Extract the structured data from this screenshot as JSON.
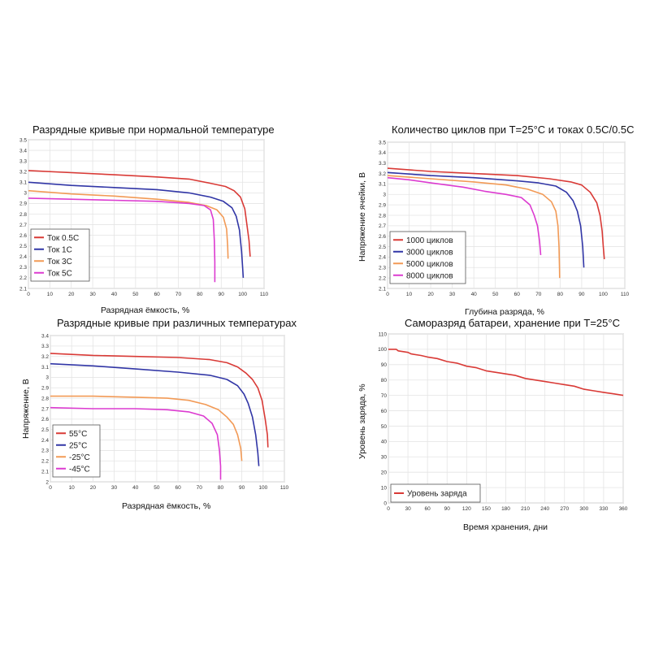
{
  "chart_data": [
    {
      "type": "line",
      "title": "Разрядные кривые при нормальной температуре",
      "xlabel": "Разрядная ёмкость, %",
      "ylabel": "",
      "xlim": [
        0,
        110
      ],
      "ylim": [
        2.1,
        3.5
      ],
      "xticks": [
        0,
        10,
        20,
        30,
        40,
        50,
        60,
        70,
        80,
        90,
        100,
        110
      ],
      "yticks": [
        2.1,
        2.2,
        2.3,
        2.4,
        2.5,
        2.6,
        2.7,
        2.8,
        2.9,
        3.0,
        3.1,
        3.2,
        3.3,
        3.4,
        3.5
      ],
      "grid": true,
      "legend": "bottom-left",
      "series": [
        {
          "name": "Ток 0.5С",
          "color": "#d93a36",
          "points": [
            [
              0,
              3.21
            ],
            [
              20,
              3.19
            ],
            [
              40,
              3.17
            ],
            [
              60,
              3.15
            ],
            [
              75,
              3.13
            ],
            [
              85,
              3.09
            ],
            [
              92,
              3.06
            ],
            [
              96,
              3.02
            ],
            [
              99,
              2.96
            ],
            [
              101,
              2.85
            ],
            [
              102,
              2.7
            ],
            [
              103,
              2.55
            ],
            [
              103.5,
              2.4
            ]
          ]
        },
        {
          "name": "Ток 1С",
          "color": "#3136a6",
          "points": [
            [
              0,
              3.1
            ],
            [
              20,
              3.07
            ],
            [
              40,
              3.05
            ],
            [
              60,
              3.03
            ],
            [
              75,
              3.0
            ],
            [
              85,
              2.96
            ],
            [
              91,
              2.92
            ],
            [
              95,
              2.86
            ],
            [
              97,
              2.78
            ],
            [
              98.5,
              2.65
            ],
            [
              99.5,
              2.45
            ],
            [
              100,
              2.3
            ],
            [
              100.3,
              2.2
            ]
          ]
        },
        {
          "name": "Ток 3С",
          "color": "#f29a56",
          "points": [
            [
              0,
              3.02
            ],
            [
              20,
              2.99
            ],
            [
              40,
              2.97
            ],
            [
              60,
              2.94
            ],
            [
              75,
              2.91
            ],
            [
              83,
              2.88
            ],
            [
              88,
              2.84
            ],
            [
              91,
              2.77
            ],
            [
              92.5,
              2.66
            ],
            [
              93,
              2.5
            ],
            [
              93.2,
              2.38
            ]
          ]
        },
        {
          "name": "Ток 5С",
          "color": "#dc3bd0",
          "points": [
            [
              0,
              2.95
            ],
            [
              20,
              2.94
            ],
            [
              40,
              2.93
            ],
            [
              60,
              2.92
            ],
            [
              75,
              2.9
            ],
            [
              82,
              2.88
            ],
            [
              85,
              2.84
            ],
            [
              86.3,
              2.75
            ],
            [
              86.8,
              2.55
            ],
            [
              87,
              2.35
            ],
            [
              87,
              2.16
            ]
          ]
        }
      ]
    },
    {
      "type": "line",
      "title": "Количество циклов при T=25°C и токах 0.5C/0.5C",
      "xlabel": "Глубина разряда, %",
      "ylabel": "Напряжение ячейки, В",
      "xlim": [
        0,
        110
      ],
      "ylim": [
        2.1,
        3.5
      ],
      "xticks": [
        0,
        10,
        20,
        30,
        40,
        50,
        60,
        70,
        80,
        90,
        100,
        110
      ],
      "yticks": [
        2.1,
        2.2,
        2.3,
        2.4,
        2.5,
        2.6,
        2.7,
        2.8,
        2.9,
        3.0,
        3.1,
        3.2,
        3.3,
        3.4,
        3.5
      ],
      "grid": true,
      "legend": "bottom-left",
      "series": [
        {
          "name": "1000 циклов",
          "color": "#d93a36",
          "points": [
            [
              0,
              3.25
            ],
            [
              20,
              3.22
            ],
            [
              40,
              3.2
            ],
            [
              60,
              3.18
            ],
            [
              75,
              3.15
            ],
            [
              85,
              3.12
            ],
            [
              90,
              3.09
            ],
            [
              94,
              3.02
            ],
            [
              97,
              2.92
            ],
            [
              98.5,
              2.8
            ],
            [
              99.5,
              2.65
            ],
            [
              100,
              2.5
            ],
            [
              100.5,
              2.38
            ]
          ]
        },
        {
          "name": "3000 циклов",
          "color": "#3136a6",
          "points": [
            [
              0,
              3.21
            ],
            [
              20,
              3.18
            ],
            [
              40,
              3.16
            ],
            [
              60,
              3.13
            ],
            [
              70,
              3.11
            ],
            [
              78,
              3.08
            ],
            [
              83,
              3.02
            ],
            [
              86,
              2.94
            ],
            [
              88,
              2.84
            ],
            [
              89.5,
              2.7
            ],
            [
              90.5,
              2.5
            ],
            [
              91,
              2.3
            ]
          ]
        },
        {
          "name": "5000 циклов",
          "color": "#f29a56",
          "points": [
            [
              0,
              3.18
            ],
            [
              20,
              3.15
            ],
            [
              40,
              3.12
            ],
            [
              55,
              3.09
            ],
            [
              65,
              3.05
            ],
            [
              72,
              3.0
            ],
            [
              76,
              2.93
            ],
            [
              78,
              2.84
            ],
            [
              79,
              2.7
            ],
            [
              79.5,
              2.5
            ],
            [
              79.7,
              2.3
            ],
            [
              79.8,
              2.2
            ]
          ]
        },
        {
          "name": "8000 циклов",
          "color": "#dc3bd0",
          "points": [
            [
              0,
              3.16
            ],
            [
              10,
              3.14
            ],
            [
              20,
              3.11
            ],
            [
              35,
              3.07
            ],
            [
              45,
              3.03
            ],
            [
              55,
              3.0
            ],
            [
              62,
              2.97
            ],
            [
              66,
              2.9
            ],
            [
              68,
              2.8
            ],
            [
              69.5,
              2.7
            ],
            [
              70.5,
              2.55
            ],
            [
              71,
              2.42
            ]
          ]
        }
      ]
    },
    {
      "type": "line",
      "title": "Разрядные кривые при различных температурах",
      "xlabel": "Разрядная ёмкость, %",
      "ylabel": "Напряжение, В",
      "xlim": [
        0,
        110
      ],
      "ylim": [
        2.0,
        3.4
      ],
      "xticks": [
        0,
        10,
        20,
        30,
        40,
        50,
        60,
        70,
        80,
        90,
        100,
        110
      ],
      "yticks": [
        2.0,
        2.1,
        2.2,
        2.3,
        2.4,
        2.5,
        2.6,
        2.7,
        2.8,
        2.9,
        3.0,
        3.1,
        3.2,
        3.3,
        3.4
      ],
      "grid": true,
      "legend": "bottom-left",
      "series": [
        {
          "name": "55°C",
          "color": "#d93a36",
          "points": [
            [
              0,
              3.23
            ],
            [
              20,
              3.21
            ],
            [
              40,
              3.2
            ],
            [
              60,
              3.19
            ],
            [
              75,
              3.17
            ],
            [
              83,
              3.14
            ],
            [
              88,
              3.1
            ],
            [
              92,
              3.04
            ],
            [
              95,
              2.98
            ],
            [
              97.5,
              2.9
            ],
            [
              99.5,
              2.78
            ],
            [
              101,
              2.6
            ],
            [
              102,
              2.45
            ],
            [
              102.3,
              2.33
            ]
          ]
        },
        {
          "name": "25°C",
          "color": "#3136a6",
          "points": [
            [
              0,
              3.13
            ],
            [
              20,
              3.11
            ],
            [
              40,
              3.08
            ],
            [
              60,
              3.05
            ],
            [
              75,
              3.02
            ],
            [
              83,
              2.98
            ],
            [
              88,
              2.92
            ],
            [
              91,
              2.84
            ],
            [
              93,
              2.75
            ],
            [
              95,
              2.62
            ],
            [
              96.5,
              2.45
            ],
            [
              97.5,
              2.28
            ],
            [
              98,
              2.15
            ]
          ]
        },
        {
          "name": "-25°C",
          "color": "#f29a56",
          "points": [
            [
              0,
              2.82
            ],
            [
              20,
              2.82
            ],
            [
              40,
              2.81
            ],
            [
              55,
              2.8
            ],
            [
              65,
              2.78
            ],
            [
              73,
              2.74
            ],
            [
              79,
              2.69
            ],
            [
              83,
              2.62
            ],
            [
              86,
              2.55
            ],
            [
              88,
              2.45
            ],
            [
              89.5,
              2.32
            ],
            [
              90,
              2.2
            ]
          ]
        },
        {
          "name": "-45°C",
          "color": "#dc3bd0",
          "points": [
            [
              0,
              2.71
            ],
            [
              20,
              2.7
            ],
            [
              40,
              2.7
            ],
            [
              55,
              2.69
            ],
            [
              65,
              2.67
            ],
            [
              72,
              2.63
            ],
            [
              76,
              2.56
            ],
            [
              78.5,
              2.45
            ],
            [
              79.5,
              2.3
            ],
            [
              80,
              2.15
            ],
            [
              80,
              2.02
            ]
          ]
        }
      ]
    },
    {
      "type": "line",
      "title": "Саморазряд батареи, хранение при T=25°C",
      "xlabel": "Время хранения, дни",
      "ylabel": "Уровень заряда, %",
      "xlim": [
        0,
        360
      ],
      "ylim": [
        0,
        110
      ],
      "xticks": [
        0,
        30,
        60,
        90,
        120,
        150,
        180,
        210,
        240,
        270,
        300,
        330,
        360
      ],
      "yticks": [
        0,
        10,
        20,
        30,
        40,
        50,
        60,
        70,
        80,
        90,
        100,
        110
      ],
      "grid": true,
      "legend": "bottom-left",
      "series": [
        {
          "name": "Уровень заряда",
          "color": "#d93a36",
          "points": [
            [
              0,
              100
            ],
            [
              12,
              100
            ],
            [
              15,
              99
            ],
            [
              30,
              98
            ],
            [
              35,
              97
            ],
            [
              50,
              96
            ],
            [
              60,
              95
            ],
            [
              75,
              94
            ],
            [
              90,
              92
            ],
            [
              105,
              91
            ],
            [
              120,
              89
            ],
            [
              135,
              88
            ],
            [
              150,
              86
            ],
            [
              165,
              85
            ],
            [
              180,
              84
            ],
            [
              195,
              83
            ],
            [
              210,
              81
            ],
            [
              225,
              80
            ],
            [
              240,
              79
            ],
            [
              255,
              78
            ],
            [
              270,
              77
            ],
            [
              285,
              76
            ],
            [
              300,
              74
            ],
            [
              315,
              73
            ],
            [
              330,
              72
            ],
            [
              345,
              71
            ],
            [
              360,
              70
            ]
          ]
        }
      ]
    }
  ]
}
